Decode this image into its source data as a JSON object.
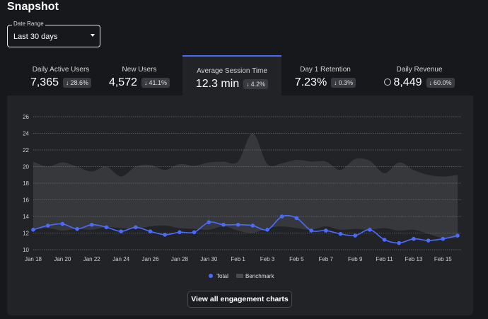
{
  "page": {
    "title": "Snapshot"
  },
  "date_range": {
    "label": "Date Range",
    "value": "Last 30 days"
  },
  "metrics": [
    {
      "label": "Daily Active Users",
      "value": "7,365",
      "change": "28.6%",
      "direction": "down",
      "active": false
    },
    {
      "label": "New Users",
      "value": "4,572",
      "change": "41.1%",
      "direction": "down",
      "active": false
    },
    {
      "label": "Average Session Time",
      "value": "12.3 min",
      "change": "4.2%",
      "direction": "down",
      "active": true
    },
    {
      "label": "Day 1 Retention",
      "value": "7.23%",
      "change": "0.3%",
      "direction": "down",
      "active": false
    },
    {
      "label": "Daily Revenue",
      "value": "8,449",
      "change": "60.0%",
      "direction": "down",
      "active": false,
      "icon": "coin-icon"
    }
  ],
  "chart_data": {
    "type": "line",
    "x_tick_labels": [
      "Jan 18",
      "Jan 20",
      "Jan 22",
      "Jan 24",
      "Jan 26",
      "Jan 28",
      "Jan 30",
      "Feb 1",
      "Feb 3",
      "Feb 5",
      "Feb 7",
      "Feb 9",
      "Feb 11",
      "Feb 13",
      "Feb 15"
    ],
    "y_ticks": [
      10,
      12,
      14,
      16,
      18,
      20,
      22,
      24,
      26
    ],
    "ylim": [
      10,
      26
    ],
    "x": [
      "Jan 18",
      "Jan 19",
      "Jan 20",
      "Jan 21",
      "Jan 22",
      "Jan 23",
      "Jan 24",
      "Jan 25",
      "Jan 26",
      "Jan 27",
      "Jan 28",
      "Jan 29",
      "Jan 30",
      "Jan 31",
      "Feb 1",
      "Feb 2",
      "Feb 3",
      "Feb 4",
      "Feb 5",
      "Feb 6",
      "Feb 7",
      "Feb 8",
      "Feb 9",
      "Feb 10",
      "Feb 11",
      "Feb 12",
      "Feb 13",
      "Feb 14",
      "Feb 15",
      "Feb 16"
    ],
    "series": [
      {
        "name": "Total",
        "color": "#4b6bff",
        "values": [
          12.4,
          12.9,
          13.1,
          12.5,
          13.0,
          12.7,
          12.2,
          12.7,
          12.2,
          11.8,
          12.1,
          12.1,
          13.3,
          13.0,
          13.0,
          12.9,
          12.4,
          14.0,
          13.8,
          12.3,
          12.3,
          11.9,
          11.7,
          12.4,
          11.2,
          10.8,
          11.3,
          11.1,
          11.3,
          11.7
        ]
      },
      {
        "name": "Benchmark",
        "color": "#3a3b3f",
        "type": "area",
        "values": [
          20.6,
          20.0,
          20.5,
          20.0,
          19.4,
          20.0,
          18.8,
          20.0,
          20.2,
          19.6,
          20.3,
          20.1,
          20.5,
          20.6,
          20.6,
          24.0,
          20.3,
          20.4,
          20.8,
          20.6,
          20.6,
          19.6,
          20.9,
          20.7,
          19.2,
          20.5,
          19.6,
          19.0,
          18.8,
          19.0
        ],
        "lower": [
          12.4,
          12.6,
          12.3,
          12.5,
          12.4,
          12.7,
          12.6,
          12.5,
          12.8,
          12.9,
          12.6,
          12.5,
          12.4,
          12.8,
          12.3,
          12.0,
          12.6,
          12.8,
          12.6,
          12.4,
          12.8,
          12.4,
          12.5,
          12.4,
          12.6,
          12.3,
          12.4,
          11.9,
          11.4,
          11.4
        ]
      }
    ],
    "legend": [
      "Total",
      "Benchmark"
    ],
    "legend_position": "bottom-center",
    "grid": true
  },
  "cta": {
    "label": "View all engagement charts"
  }
}
